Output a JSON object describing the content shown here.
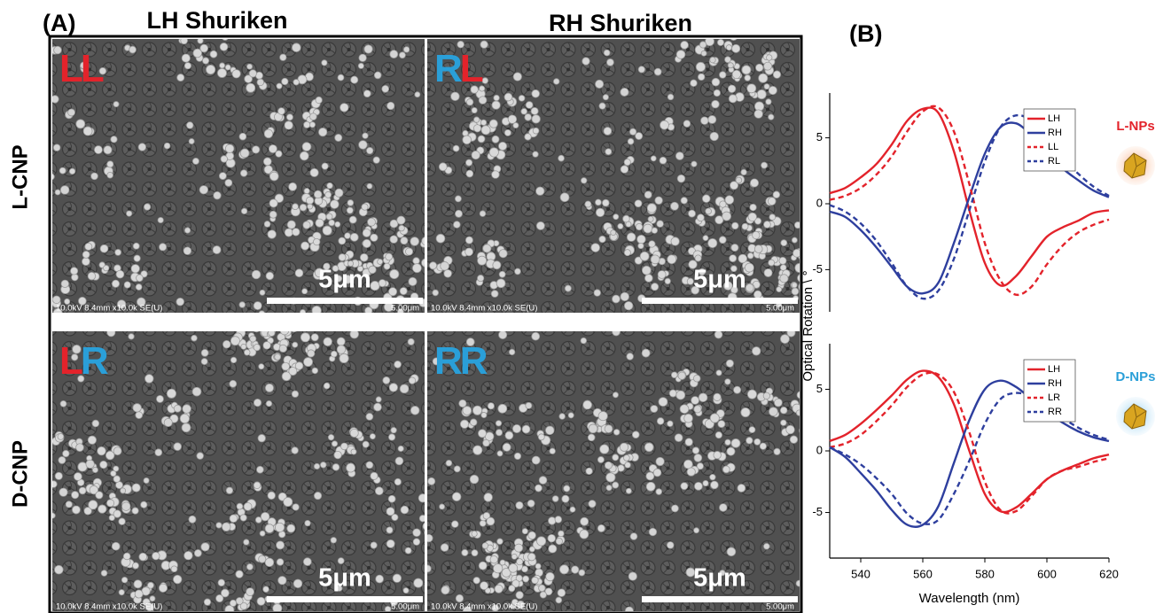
{
  "panel_a": {
    "label": "(A)",
    "columns": [
      "LH Shuriken",
      "RH Shuriken"
    ],
    "rows": [
      "L-CNP",
      "D-CNP"
    ],
    "tiles": [
      {
        "tag": [
          {
            "text": "L",
            "color": "#e3232b"
          },
          {
            "text": "L",
            "color": "#e3232b"
          }
        ],
        "scale_bar": "5μm",
        "info": "10.0kV 8.4mm x10.0k SE(U)",
        "scale": "5.00μm"
      },
      {
        "tag": [
          {
            "text": "R",
            "color": "#2a9fd8"
          },
          {
            "text": "L",
            "color": "#e3232b"
          }
        ],
        "scale_bar": "5μm",
        "info": "10.0kV 8.4mm x10.0k SE(U)",
        "scale": "5.00μm"
      },
      {
        "tag": [
          {
            "text": "L",
            "color": "#e3232b"
          },
          {
            "text": "R",
            "color": "#2a9fd8"
          }
        ],
        "scale_bar": "5μm",
        "info": "10.0kV 8.4mm x10.0k SE(U)",
        "scale": "5.00μm"
      },
      {
        "tag": [
          {
            "text": "R",
            "color": "#2a9fd8"
          },
          {
            "text": "R",
            "color": "#2a9fd8"
          }
        ],
        "scale_bar": "5μm",
        "info": "10.0kV 8.4mm x10.0k SE(U)",
        "scale": "5.00μm"
      }
    ]
  },
  "panel_b": {
    "label": "(B)",
    "y_label": "Optical Rotation \\ °"
  },
  "chart_data": [
    {
      "type": "line",
      "annotation": "L-NPs",
      "annotation_color": "#e3232b",
      "x": [
        530,
        535,
        540,
        545,
        550,
        555,
        560,
        565,
        570,
        575,
        580,
        585,
        590,
        595,
        600,
        605,
        610,
        615,
        620
      ],
      "xlim": [
        530,
        620
      ],
      "ylim": [
        -8.2,
        8.4
      ],
      "yticks": [
        -5,
        0,
        5
      ],
      "legend": "top-right",
      "series": [
        {
          "name": "LH",
          "color": "#e3232b",
          "dash": false,
          "values": [
            0.8,
            1.2,
            2,
            3,
            4.5,
            6.3,
            7.2,
            6.9,
            4,
            -0.5,
            -4.5,
            -6.2,
            -5.5,
            -4,
            -2.5,
            -1.8,
            -1.3,
            -0.7,
            -0.5
          ]
        },
        {
          "name": "RH",
          "color": "#2e3f9e",
          "dash": false,
          "values": [
            -0.6,
            -1,
            -2,
            -3.3,
            -4.8,
            -6.3,
            -6.8,
            -6,
            -3,
            0.5,
            3.8,
            5.8,
            6.1,
            5.2,
            4,
            2.7,
            1.8,
            1,
            0.5
          ]
        },
        {
          "name": "LL",
          "color": "#e3232b",
          "dash": true,
          "values": [
            0.3,
            0.6,
            1.2,
            2.2,
            3.6,
            5.5,
            7,
            7.3,
            5.5,
            1.5,
            -3,
            -5.8,
            -6.9,
            -6.3,
            -4.6,
            -3.2,
            -2.2,
            -1.6,
            -1.2
          ]
        },
        {
          "name": "RL",
          "color": "#2e3f9e",
          "dash": true,
          "values": [
            -0.1,
            -0.6,
            -1.5,
            -2.8,
            -4.5,
            -6.3,
            -7.2,
            -6.6,
            -4.2,
            -0.5,
            3.2,
            5.8,
            6.7,
            6.3,
            5,
            3.5,
            2.3,
            1.3,
            0.6
          ]
        }
      ]
    },
    {
      "type": "line",
      "annotation": "D-NPs",
      "annotation_color": "#2a9fd8",
      "xlabel": "Wavelength (nm)",
      "x": [
        530,
        535,
        540,
        545,
        550,
        555,
        560,
        565,
        570,
        575,
        580,
        585,
        590,
        595,
        600,
        605,
        610,
        615,
        620
      ],
      "xlim": [
        530,
        620
      ],
      "xticks": [
        540,
        560,
        580,
        600,
        620
      ],
      "ylim": [
        -8.7,
        8.7
      ],
      "yticks": [
        -5,
        0,
        5
      ],
      "legend": "top-right",
      "series": [
        {
          "name": "LH",
          "color": "#e3232b",
          "dash": false,
          "values": [
            0.8,
            1.3,
            2.2,
            3.3,
            4.5,
            5.8,
            6.5,
            6,
            3.8,
            0,
            -3.5,
            -4.9,
            -4.6,
            -3.5,
            -2.3,
            -1.6,
            -1.1,
            -0.6,
            -0.3
          ]
        },
        {
          "name": "RH",
          "color": "#2e3f9e",
          "dash": false,
          "values": [
            0.3,
            -0.5,
            -1.8,
            -3.2,
            -4.8,
            -6,
            -6,
            -4.5,
            -1,
            2.5,
            5,
            5.7,
            5.2,
            4.2,
            3.2,
            2.3,
            1.6,
            1.1,
            0.8
          ]
        },
        {
          "name": "LR",
          "color": "#e3232b",
          "dash": true,
          "values": [
            0.3,
            0.6,
            1.3,
            2.4,
            3.7,
            5.2,
            6.2,
            6.2,
            4.8,
            1.5,
            -2.5,
            -4.8,
            -4.9,
            -3.7,
            -2.3,
            -1.6,
            -1.3,
            -0.9,
            -0.6
          ]
        },
        {
          "name": "RR",
          "color": "#2e3f9e",
          "dash": true,
          "values": [
            0.3,
            -0.3,
            -1.1,
            -2.2,
            -3.5,
            -5.1,
            -5.9,
            -5.6,
            -3.5,
            -0.8,
            2.2,
            4.2,
            4.7,
            4.4,
            3.6,
            2.7,
            1.9,
            1.3,
            0.9
          ]
        }
      ]
    }
  ]
}
